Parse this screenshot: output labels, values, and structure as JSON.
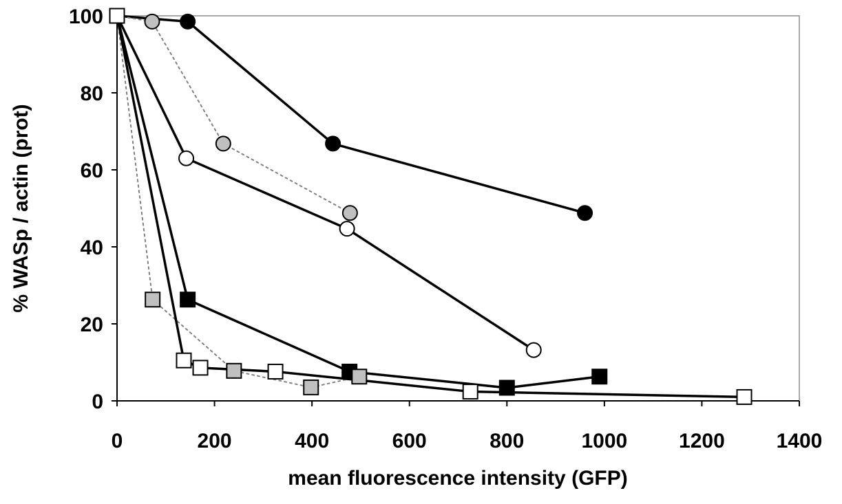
{
  "chart_data": {
    "type": "line",
    "title": "",
    "xlabel": "mean fluorescence intensity (GFP)",
    "ylabel": "% WASp / actin (prot)",
    "xlim": [
      0,
      1400
    ],
    "ylim": [
      0,
      100
    ],
    "x_ticks": [
      "0",
      "200",
      "400",
      "600",
      "800",
      "1000",
      "1200",
      "1400"
    ],
    "y_ticks": [
      "0",
      "20",
      "40",
      "60",
      "80",
      "100"
    ],
    "grid": false,
    "legend": "none",
    "series": [
      {
        "marker": "circle",
        "fill": "#000000",
        "line": "solid",
        "line_color": "#000000",
        "points": [
          [
            0,
            100
          ],
          [
            145,
            98.5
          ],
          [
            443,
            66.8
          ],
          [
            960,
            48.8
          ]
        ]
      },
      {
        "marker": "circle",
        "fill": "#c0c0c0",
        "line": "dotted",
        "line_color": "#808080",
        "points": [
          [
            0,
            100
          ],
          [
            72,
            98.5
          ],
          [
            218,
            66.8
          ],
          [
            478,
            48.8
          ]
        ]
      },
      {
        "marker": "circle",
        "fill": "#ffffff",
        "line": "solid",
        "line_color": "#000000",
        "points": [
          [
            0,
            100
          ],
          [
            142,
            63.0
          ],
          [
            472,
            44.7
          ],
          [
            855,
            13.2
          ]
        ]
      },
      {
        "marker": "square",
        "fill": "#000000",
        "line": "solid",
        "line_color": "#000000",
        "points": [
          [
            0,
            100
          ],
          [
            145,
            26.3
          ],
          [
            477,
            7.6
          ],
          [
            800,
            3.4
          ],
          [
            990,
            6.3
          ]
        ]
      },
      {
        "marker": "square",
        "fill": "#c0c0c0",
        "line": "dotted",
        "line_color": "#808080",
        "points": [
          [
            0,
            100
          ],
          [
            73,
            26.3
          ],
          [
            240,
            7.8
          ],
          [
            398,
            3.5
          ],
          [
            497,
            6.3
          ]
        ]
      },
      {
        "marker": "square",
        "fill": "#ffffff",
        "line": "solid",
        "line_color": "#000000",
        "points": [
          [
            0,
            100
          ],
          [
            137,
            10.5
          ],
          [
            171,
            8.6
          ],
          [
            325,
            7.6
          ],
          [
            725,
            2.4
          ],
          [
            1287,
            1.0
          ]
        ]
      }
    ]
  }
}
